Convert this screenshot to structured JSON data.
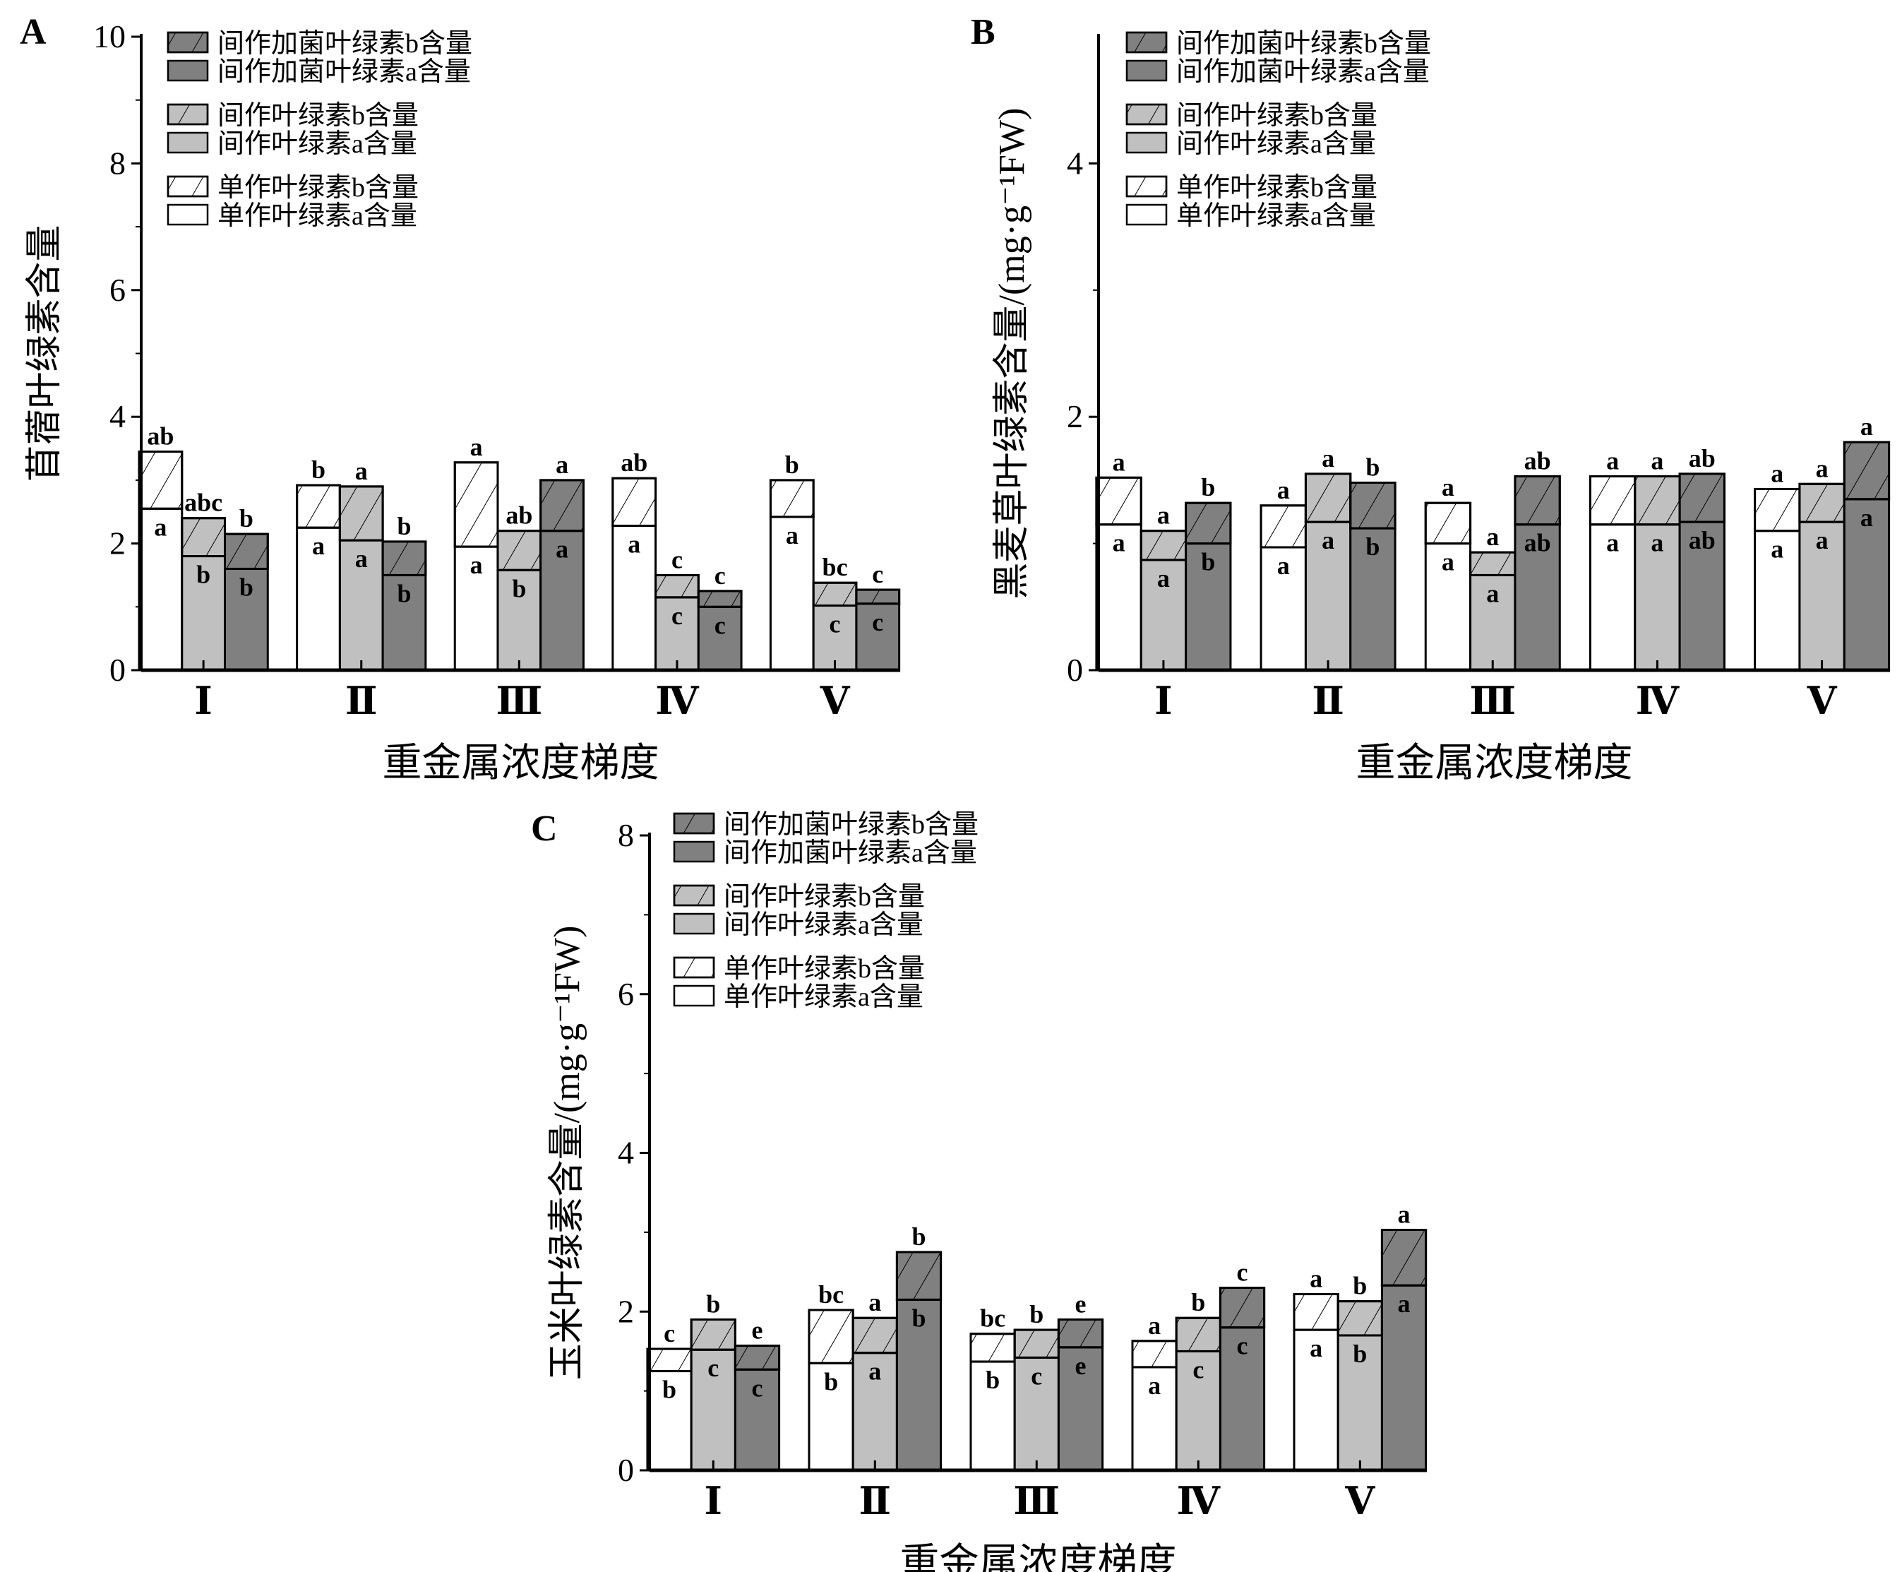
{
  "legend": [
    "间作加菌叶绿素b含量",
    "间作加菌叶绿素a含量",
    "间作叶绿素b含量",
    "间作叶绿素a含量",
    "单作叶绿素b含量",
    "单作叶绿素a含量"
  ],
  "colors": {
    "mono": "#ffffff",
    "inter": "#c0c0c0",
    "fungus": "#808080",
    "axis": "#000000"
  },
  "chart_data": [
    {
      "panel": "A",
      "type": "bar",
      "stacked": true,
      "ylabel": "苜蓿叶绿素含量",
      "xlabel": "重金属浓度梯度",
      "ylim": [
        0,
        10
      ],
      "yticks": [
        0,
        2,
        4,
        6,
        8,
        10
      ],
      "categories": [
        "Ⅰ",
        "Ⅱ",
        "Ⅲ",
        "Ⅳ",
        "Ⅴ"
      ],
      "series": [
        {
          "name": "单作",
          "chl_a": [
            2.55,
            2.25,
            1.95,
            2.28,
            2.42
          ],
          "total": [
            3.45,
            2.92,
            3.28,
            3.03,
            3.0
          ],
          "letters_b": [
            "ab",
            "b",
            "a",
            "ab",
            "b"
          ],
          "letters_a": [
            "a",
            "a",
            "a",
            "a",
            "a"
          ]
        },
        {
          "name": "间作",
          "chl_a": [
            1.8,
            2.05,
            1.58,
            1.15,
            1.02
          ],
          "total": [
            2.4,
            2.9,
            2.2,
            1.5,
            1.38
          ],
          "letters_b": [
            "abc",
            "a",
            "ab",
            "c",
            "bc"
          ],
          "letters_a": [
            "b",
            "a",
            "b",
            "c",
            "c"
          ]
        },
        {
          "name": "间作加菌",
          "chl_a": [
            1.6,
            1.5,
            2.2,
            1.0,
            1.05
          ],
          "total": [
            2.15,
            2.03,
            3.0,
            1.25,
            1.27
          ],
          "letters_b": [
            "b",
            "b",
            "a",
            "c",
            "c"
          ],
          "letters_a": [
            "b",
            "b",
            "a",
            "c",
            "c"
          ]
        }
      ]
    },
    {
      "panel": "B",
      "type": "bar",
      "stacked": true,
      "ylabel": "黑麦草叶绿素含量/(mg·g⁻¹FW)",
      "xlabel": "重金属浓度梯度",
      "ylim": [
        0,
        5
      ],
      "yticks": [
        0,
        2,
        4
      ],
      "categories": [
        "Ⅰ",
        "Ⅱ",
        "Ⅲ",
        "Ⅳ",
        "Ⅴ"
      ],
      "series": [
        {
          "name": "单作",
          "chl_a": [
            1.15,
            0.97,
            1.0,
            1.15,
            1.1
          ],
          "total": [
            1.52,
            1.3,
            1.32,
            1.53,
            1.43
          ],
          "letters_b": [
            "a",
            "a",
            "a",
            "a",
            "a"
          ],
          "letters_a": [
            "a",
            "a",
            "a",
            "a",
            "a"
          ]
        },
        {
          "name": "间作",
          "chl_a": [
            0.87,
            1.17,
            0.75,
            1.15,
            1.17
          ],
          "total": [
            1.1,
            1.55,
            0.93,
            1.53,
            1.47
          ],
          "letters_b": [
            "a",
            "a",
            "a",
            "a",
            "a"
          ],
          "letters_a": [
            "a",
            "a",
            "a",
            "a",
            "a"
          ]
        },
        {
          "name": "间作加菌",
          "chl_a": [
            1.0,
            1.12,
            1.15,
            1.17,
            1.35
          ],
          "total": [
            1.32,
            1.48,
            1.53,
            1.55,
            1.8
          ],
          "letters_b": [
            "b",
            "b",
            "ab",
            "ab",
            "a"
          ],
          "letters_a": [
            "b",
            "b",
            "ab",
            "ab",
            "a"
          ]
        }
      ]
    },
    {
      "panel": "C",
      "type": "bar",
      "stacked": true,
      "ylabel": "玉米叶绿素含量/(mg·g⁻¹FW)",
      "xlabel": "重金属浓度梯度",
      "ylim": [
        0,
        8
      ],
      "yticks": [
        0,
        2,
        4,
        6,
        8
      ],
      "categories": [
        "Ⅰ",
        "Ⅱ",
        "Ⅲ",
        "Ⅳ",
        "Ⅴ"
      ],
      "series": [
        {
          "name": "单作",
          "chl_a": [
            1.25,
            1.35,
            1.37,
            1.3,
            1.77
          ],
          "total": [
            1.53,
            2.02,
            1.72,
            1.63,
            2.22
          ],
          "letters_b": [
            "c",
            "bc",
            "bc",
            "a",
            "a"
          ],
          "letters_a": [
            "b",
            "b",
            "b",
            "a",
            "a"
          ]
        },
        {
          "name": "间作",
          "chl_a": [
            1.52,
            1.48,
            1.42,
            1.5,
            1.7
          ],
          "total": [
            1.9,
            1.92,
            1.77,
            1.92,
            2.13
          ],
          "letters_b": [
            "b",
            "a",
            "b",
            "b",
            "b"
          ],
          "letters_a": [
            "c",
            "a",
            "c",
            "c",
            "b"
          ]
        },
        {
          "name": "间作加菌",
          "chl_a": [
            1.27,
            2.15,
            1.55,
            1.8,
            2.33
          ],
          "total": [
            1.57,
            2.75,
            1.9,
            2.3,
            3.03
          ],
          "letters_b": [
            "e",
            "b",
            "e",
            "c",
            "a"
          ],
          "letters_a": [
            "c",
            "b",
            "e",
            "c",
            "a"
          ]
        }
      ]
    }
  ]
}
